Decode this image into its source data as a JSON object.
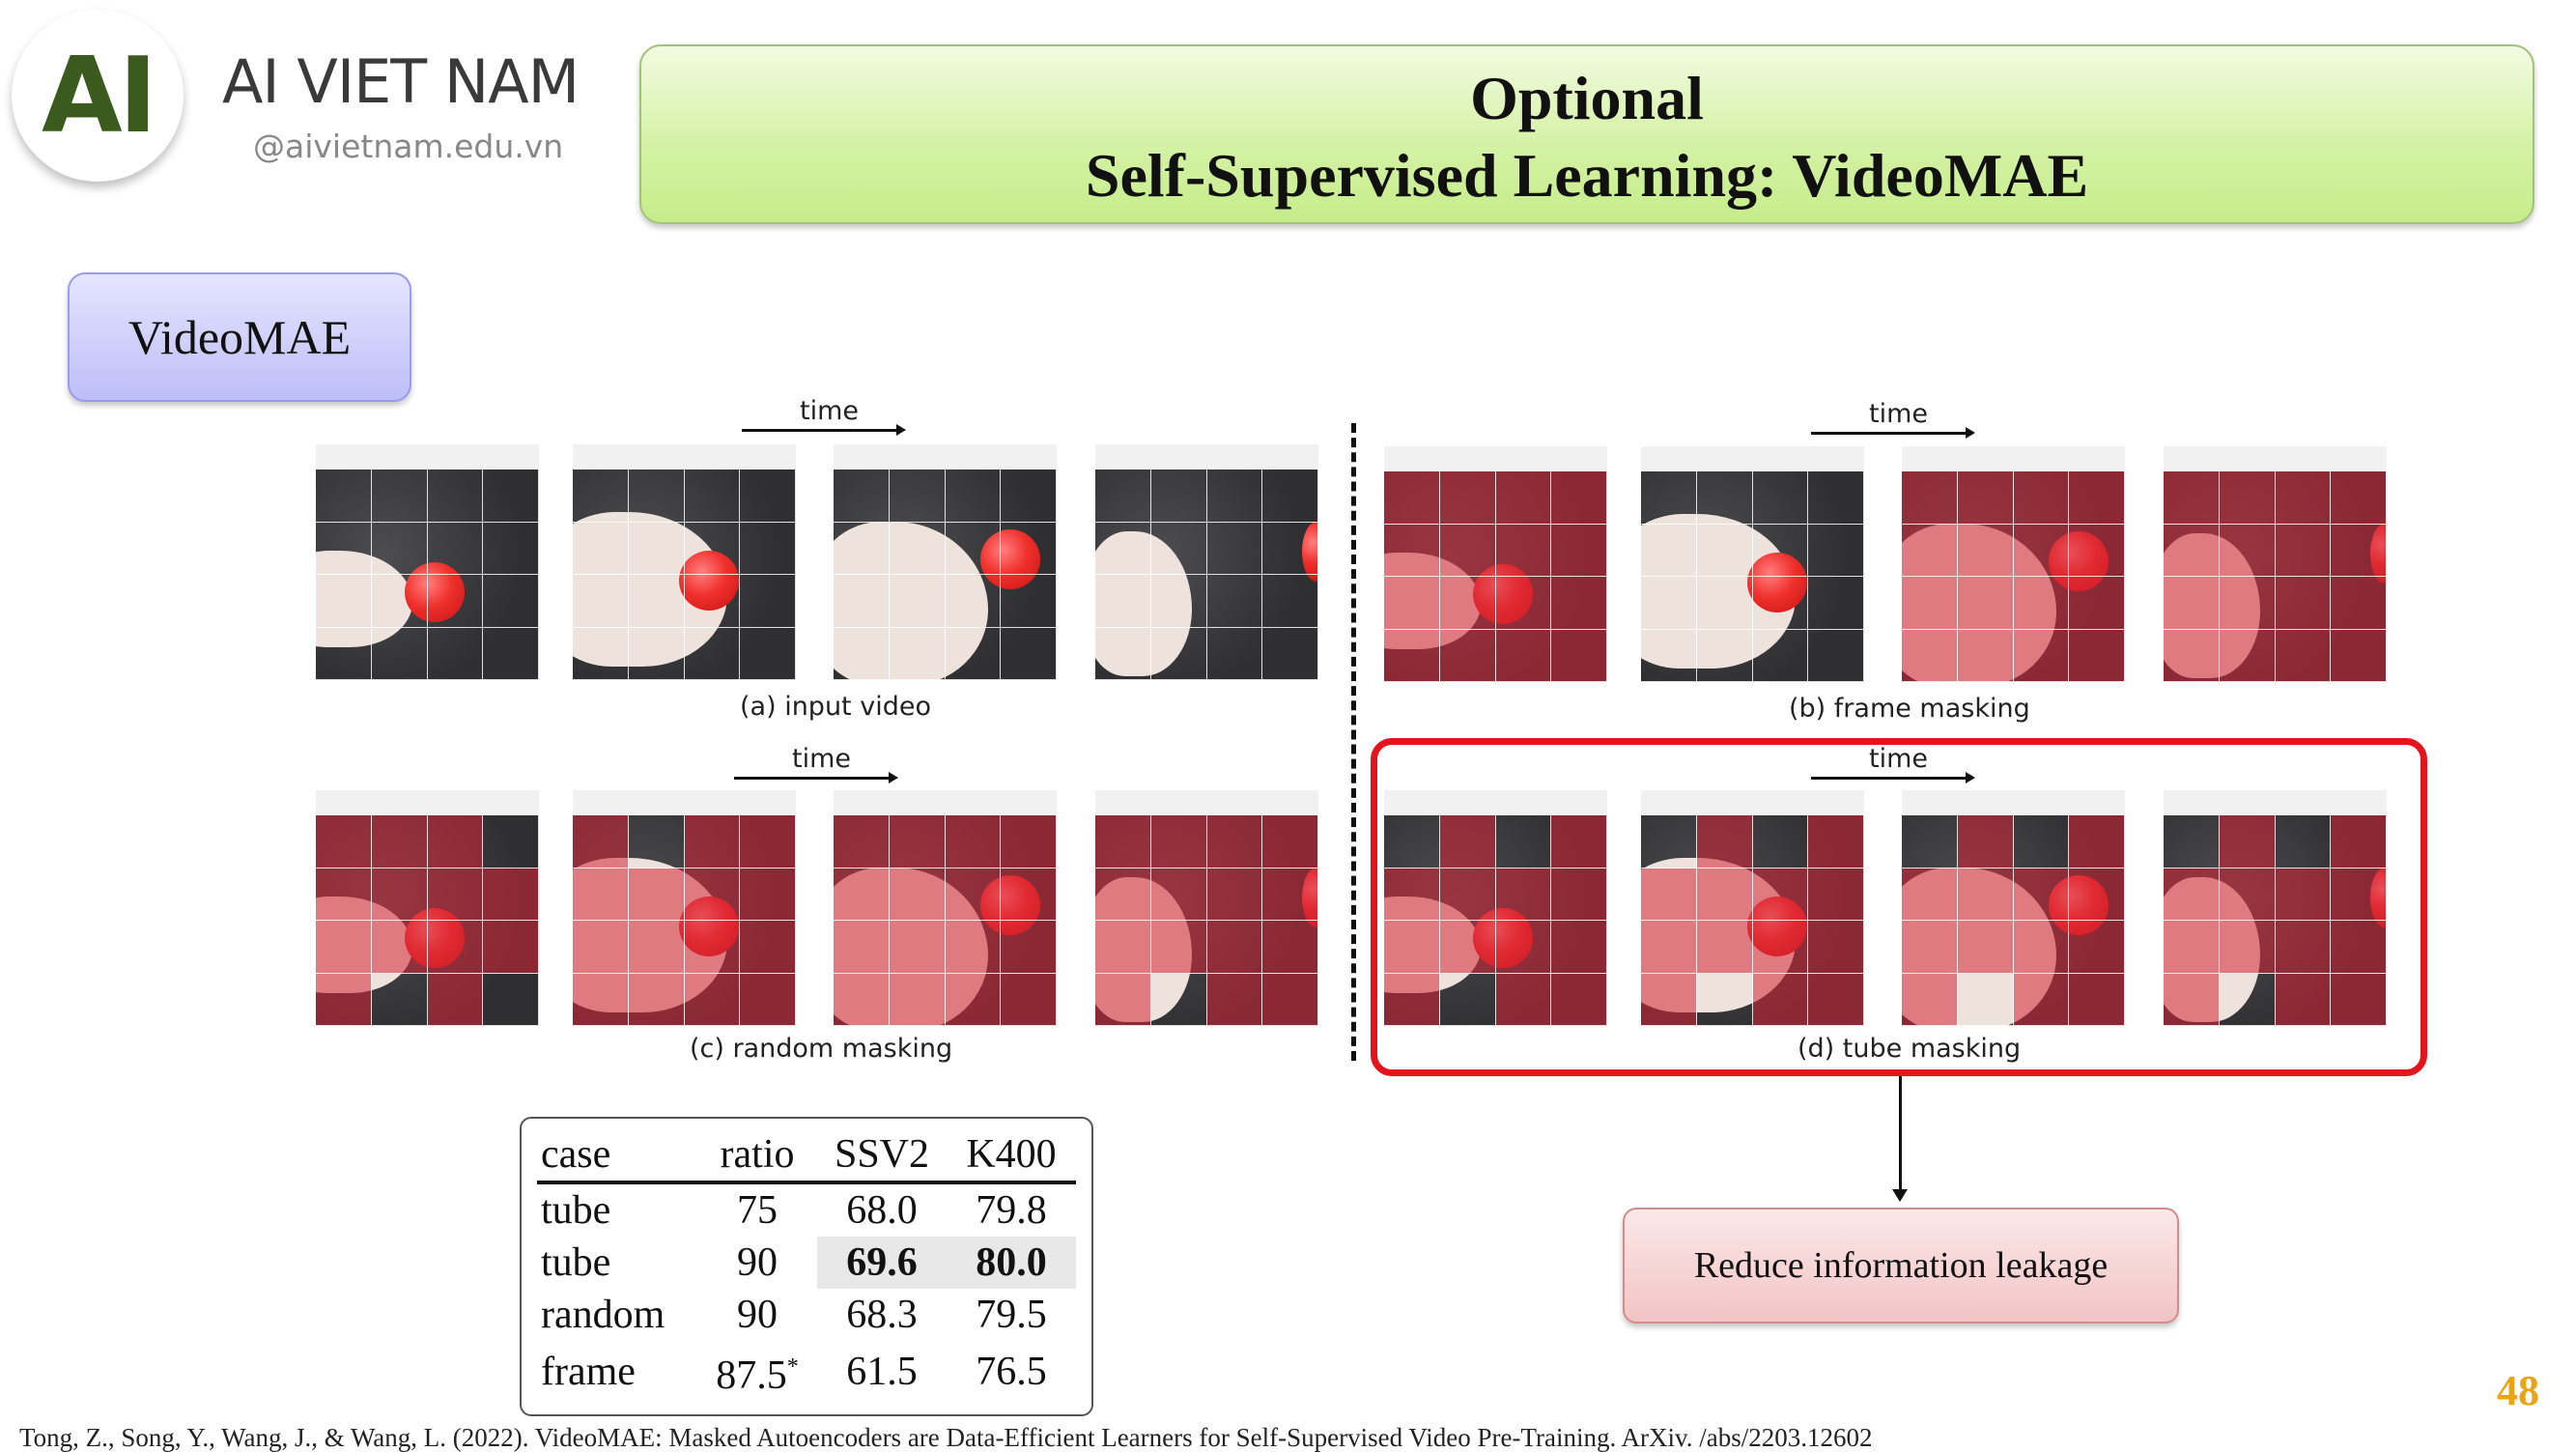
{
  "brand": {
    "logo_text": "AI",
    "name": "AI VIET NAM",
    "site": "@aivietnam.edu.vn"
  },
  "title": {
    "line1": "Optional",
    "line2": "Self-Supervised Learning: VideoMAE"
  },
  "section_label": "VideoMAE",
  "figure": {
    "time_label": "time",
    "captions": {
      "input": "(a) input video",
      "frame": "(b) frame masking",
      "random": "(c) random masking",
      "tube": "(d) tube masking"
    },
    "highlight_color": "#e3141b",
    "mask_color": "#d62436"
  },
  "leakage_label": "Reduce information leakage",
  "results_table": {
    "headers": [
      "case",
      "ratio",
      "SSV2",
      "K400"
    ],
    "rows": [
      {
        "case": "tube",
        "ratio": "75",
        "ssv2": "68.0",
        "k400": "79.8"
      },
      {
        "case": "tube",
        "ratio": "90",
        "ssv2": "69.6",
        "k400": "80.0",
        "best": true
      },
      {
        "case": "random",
        "ratio": "90",
        "ssv2": "68.3",
        "k400": "79.5"
      },
      {
        "case": "frame",
        "ratio": "87.5",
        "ratio_mark": "*",
        "ssv2": "61.5",
        "k400": "76.5"
      }
    ]
  },
  "citation": "Tong, Z., Song, Y., Wang, J., & Wang, L. (2022). VideoMAE: Masked Autoencoders are Data-Efficient Learners for Self-Supervised Video Pre-Training. ArXiv. /abs/2203.12602",
  "page_number": "48",
  "colors": {
    "accent_green": "#3b5a1e",
    "page_number": "#e8a317"
  }
}
